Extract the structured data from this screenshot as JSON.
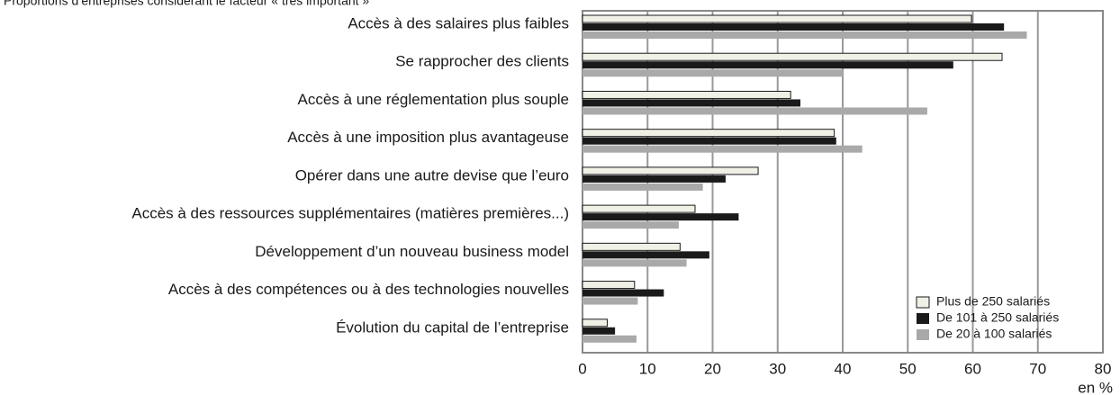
{
  "chart_data": {
    "type": "bar",
    "orientation": "horizontal",
    "title": "Proportions d’entreprises considérant le facteur « très important »",
    "x_label": "en %",
    "categories": [
      "Accès à des salaires plus faibles",
      "Se rapprocher des clients",
      "Accès à une réglementation plus souple",
      "Accès à une imposition plus avantageuse",
      "Opérer dans une autre devise que l’euro",
      "Accès à des ressources supplémentaires (matières premières...)",
      "Développement d’un nouveau business model",
      "Accès à des compétences ou à des technologies nouvelles",
      "Évolution du capital de l’entreprise"
    ],
    "series": [
      {
        "name": "Plus de 250 salariés",
        "color": "#f0f0e6",
        "values": [
          59.8,
          64.5,
          32,
          38.7,
          27,
          17.3,
          15,
          8,
          3.8
        ]
      },
      {
        "name": "De 101 à 250 salariés",
        "color": "#1a1a1a",
        "values": [
          64.8,
          57,
          33.5,
          39,
          22,
          24,
          19.5,
          12.5,
          5
        ]
      },
      {
        "name": "De 20 à 100 salariés",
        "color": "#a9a9a9",
        "values": [
          68.3,
          40,
          53,
          43,
          18.5,
          14.8,
          16,
          8.5,
          8.3
        ]
      }
    ],
    "xlim": [
      0,
      80
    ],
    "xticks": [
      0,
      10,
      20,
      30,
      40,
      50,
      60,
      70,
      80
    ],
    "grid": true,
    "legend": "lower right"
  }
}
